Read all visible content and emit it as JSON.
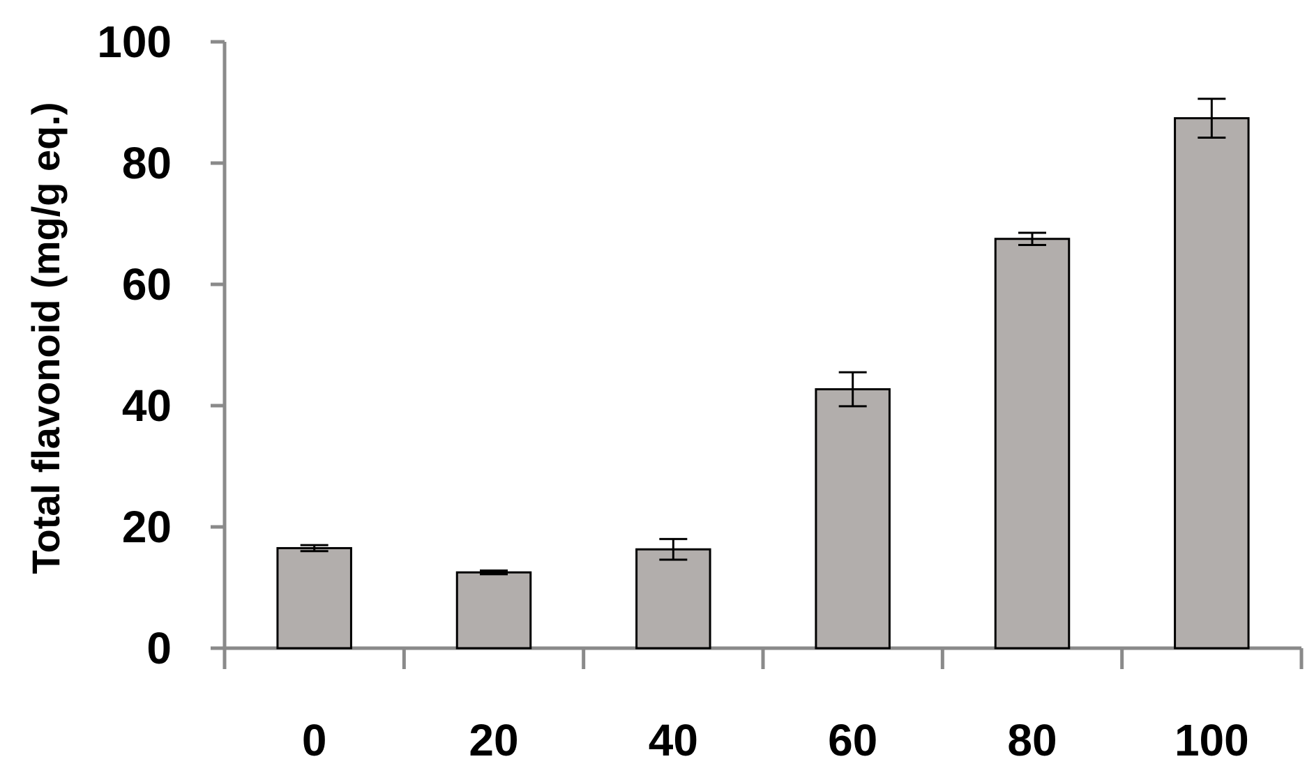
{
  "chart_data": {
    "type": "bar",
    "title": "",
    "xlabel": "",
    "ylabel": "Total flavonoid (mg/g eq.)",
    "categories": [
      "0",
      "20",
      "40",
      "60",
      "80",
      "100"
    ],
    "series": [
      {
        "values": [
          16.5,
          12.5,
          16.3,
          42.7,
          67.5,
          87.4
        ],
        "errors": [
          0.5,
          0.3,
          1.7,
          2.8,
          1.0,
          3.2
        ]
      }
    ],
    "ylim": [
      0,
      100
    ],
    "yticks": [
      "0",
      "20",
      "40",
      "60",
      "80",
      "100"
    ],
    "grid": false,
    "colors": {
      "bar": "#b2aeac",
      "axis": "#8a8a8a"
    }
  }
}
